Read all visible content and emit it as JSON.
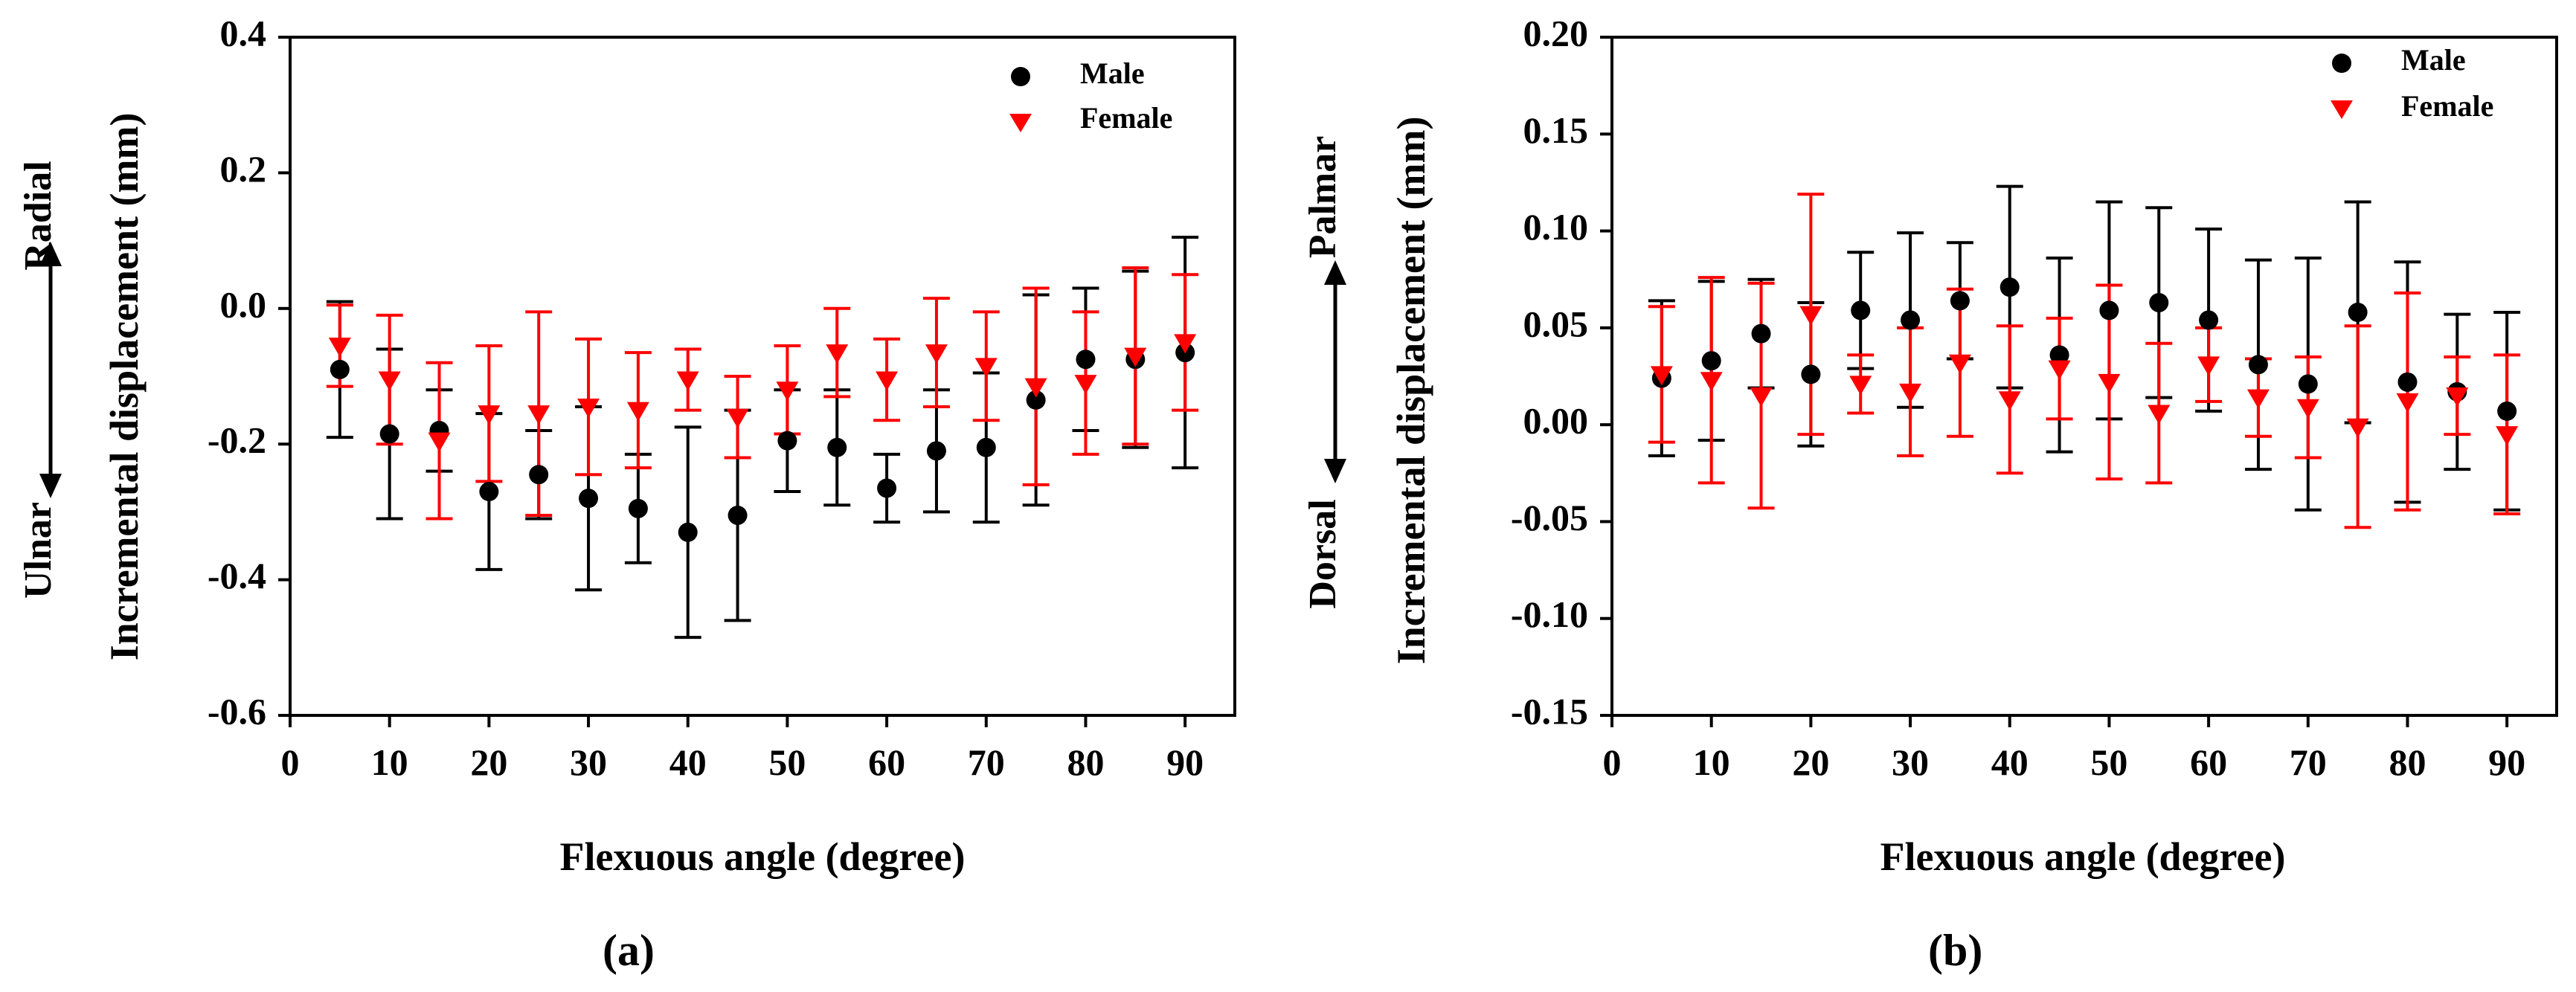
{
  "chart_data": [
    {
      "type": "scatter",
      "caption": "a",
      "title": "",
      "xlabel": "Flexuous angle (degree)",
      "ylabel": "Incremental displacement (mm)",
      "direction_positive": "Radial",
      "direction_negative": "Ulnar",
      "xlim": [
        0,
        95
      ],
      "ylim": [
        -0.6,
        0.4
      ],
      "xticks": [
        0,
        10,
        20,
        30,
        40,
        50,
        60,
        70,
        80,
        90
      ],
      "xtick_labels": [
        "0",
        "10",
        "20",
        "30",
        "40",
        "50",
        "60",
        "70",
        "80",
        "90"
      ],
      "yticks": [
        -0.6,
        -0.4,
        -0.2,
        0.0,
        0.2,
        0.4
      ],
      "ytick_labels": [
        "-0.6",
        "-0.4",
        "-0.2",
        "0.0",
        "0.2",
        "0.4"
      ],
      "grid": false,
      "legend_position": "top-right",
      "series": [
        {
          "name": "Male",
          "color": "#000000",
          "marker": "circle",
          "x": [
            5,
            10,
            15,
            20,
            25,
            30,
            35,
            40,
            45,
            50,
            55,
            60,
            65,
            70,
            75,
            80,
            85,
            90
          ],
          "y": [
            -0.09,
            -0.185,
            -0.18,
            -0.27,
            -0.245,
            -0.28,
            -0.295,
            -0.33,
            -0.305,
            -0.195,
            -0.205,
            -0.265,
            -0.21,
            -0.205,
            -0.135,
            -0.075,
            -0.075,
            -0.065
          ],
          "err": [
            0.1,
            0.125,
            0.06,
            0.115,
            0.065,
            0.135,
            0.08,
            0.155,
            0.155,
            0.075,
            0.085,
            0.05,
            0.09,
            0.11,
            0.155,
            0.105,
            0.13,
            0.17
          ]
        },
        {
          "name": "Female",
          "color": "#ff0000",
          "marker": "triangle-down",
          "x": [
            5,
            10,
            15,
            20,
            25,
            30,
            35,
            40,
            45,
            50,
            55,
            60,
            65,
            70,
            75,
            80,
            85,
            90
          ],
          "y": [
            -0.055,
            -0.105,
            -0.195,
            -0.155,
            -0.155,
            -0.145,
            -0.15,
            -0.105,
            -0.16,
            -0.12,
            -0.065,
            -0.105,
            -0.065,
            -0.085,
            -0.115,
            -0.11,
            -0.07,
            -0.05
          ],
          "err": [
            0.06,
            0.095,
            0.115,
            0.1,
            0.15,
            0.1,
            0.085,
            0.045,
            0.06,
            0.065,
            0.065,
            0.06,
            0.08,
            0.08,
            0.145,
            0.105,
            0.13,
            0.1
          ]
        }
      ]
    },
    {
      "type": "scatter",
      "caption": "b",
      "title": "",
      "xlabel": "Flexuous angle (degree)",
      "ylabel": "Incremental displacement (mm)",
      "direction_positive": "Palmar",
      "direction_negative": "Dorsal",
      "xlim": [
        0,
        95
      ],
      "ylim": [
        -0.15,
        0.2
      ],
      "xticks": [
        0,
        10,
        20,
        30,
        40,
        50,
        60,
        70,
        80,
        90
      ],
      "xtick_labels": [
        "0",
        "10",
        "20",
        "30",
        "40",
        "50",
        "60",
        "70",
        "80",
        "90"
      ],
      "yticks": [
        -0.15,
        -0.1,
        -0.05,
        0.0,
        0.05,
        0.1,
        0.15,
        0.2
      ],
      "ytick_labels": [
        "-0.15",
        "-0.10",
        "-0.05",
        "0.00",
        "0.05",
        "0.10",
        "0.15",
        "0.20"
      ],
      "grid": false,
      "legend_position": "top-right",
      "series": [
        {
          "name": "Male",
          "color": "#000000",
          "marker": "circle",
          "x": [
            5,
            10,
            15,
            20,
            25,
            30,
            35,
            40,
            45,
            50,
            55,
            60,
            65,
            70,
            75,
            80,
            85,
            90
          ],
          "y": [
            0.024,
            0.033,
            0.047,
            0.026,
            0.059,
            0.054,
            0.064,
            0.071,
            0.036,
            0.059,
            0.063,
            0.054,
            0.031,
            0.021,
            0.058,
            0.022,
            0.017,
            0.007
          ],
          "err": [
            0.04,
            0.041,
            0.028,
            0.037,
            0.03,
            0.045,
            0.03,
            0.052,
            0.05,
            0.056,
            0.049,
            0.047,
            0.054,
            0.065,
            0.057,
            0.062,
            0.04,
            0.051
          ]
        },
        {
          "name": "Female",
          "color": "#ff0000",
          "marker": "triangle-down",
          "x": [
            5,
            10,
            15,
            20,
            25,
            30,
            35,
            40,
            45,
            50,
            55,
            60,
            65,
            70,
            75,
            80,
            85,
            90
          ],
          "y": [
            0.026,
            0.023,
            0.015,
            0.057,
            0.021,
            0.017,
            0.032,
            0.013,
            0.029,
            0.022,
            0.006,
            0.031,
            0.014,
            0.009,
            -0.001,
            0.012,
            0.015,
            -0.005
          ],
          "err": [
            0.035,
            0.053,
            0.058,
            0.062,
            0.015,
            0.033,
            0.038,
            0.038,
            0.026,
            0.05,
            0.036,
            0.019,
            0.02,
            0.026,
            0.052,
            0.056,
            0.02,
            0.041
          ]
        }
      ]
    }
  ]
}
